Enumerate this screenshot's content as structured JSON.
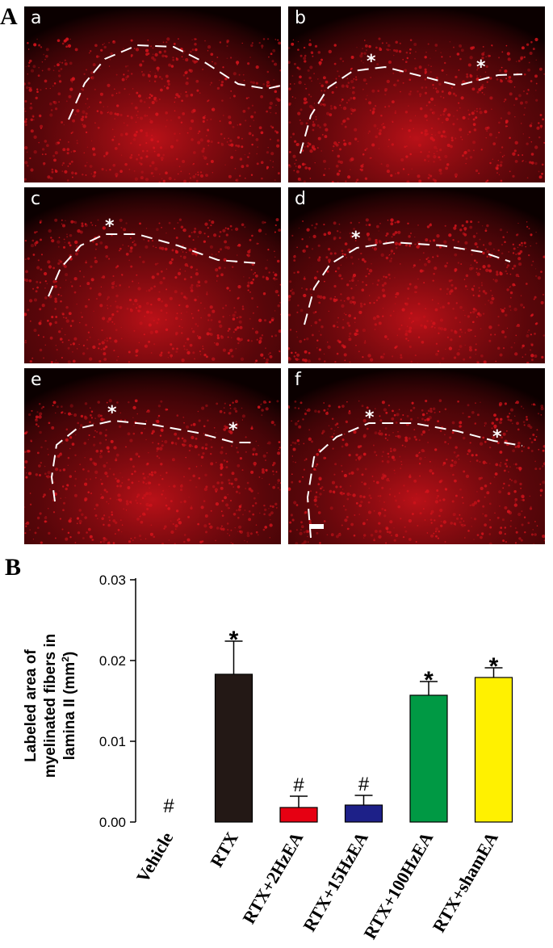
{
  "figure": {
    "panel_a_label": "A",
    "panel_b_label": "B"
  },
  "micrographs": [
    {
      "letter": "a",
      "asterisks": 0
    },
    {
      "letter": "b",
      "asterisks": 2
    },
    {
      "letter": "c",
      "asterisks": 1
    },
    {
      "letter": "d",
      "asterisks": 1
    },
    {
      "letter": "e",
      "asterisks": 2
    },
    {
      "letter": "f",
      "asterisks": 2
    }
  ],
  "colors": {
    "tissue": "#d8141c",
    "background": "#0b0000",
    "boundary": "#ffffff"
  },
  "chart_data": {
    "type": "bar",
    "categories": [
      "Vehicle",
      "RTX",
      "RTX+2HzEA",
      "RTX+15HzEA",
      "RTX+100HzEA",
      "RTX+shamEA"
    ],
    "values": [
      0.0,
      0.0183,
      0.0018,
      0.0021,
      0.0157,
      0.0179
    ],
    "errors": [
      0.0,
      0.0041,
      0.0014,
      0.0012,
      0.0017,
      0.0012
    ],
    "markers": [
      "#",
      "*",
      "#",
      "#",
      "*",
      "*"
    ],
    "colors": [
      "#ffffff",
      "#231815",
      "#e60012",
      "#1d2088",
      "#009944",
      "#fff100"
    ],
    "ylabel_lines": [
      "Labeled area of",
      "myelinated fibers in",
      "lamina II (mm2)"
    ],
    "yticks": [
      "0.00",
      "0.01",
      "0.02",
      "0.03"
    ],
    "ylim": [
      0,
      0.03
    ],
    "grid": false
  }
}
